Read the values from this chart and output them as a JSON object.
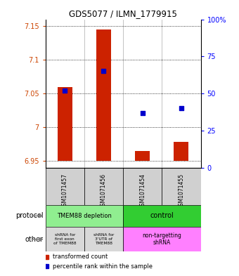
{
  "title": "GDS5077 / ILMN_1779915",
  "samples": [
    "GSM1071457",
    "GSM1071456",
    "GSM1071454",
    "GSM1071455"
  ],
  "red_values": [
    7.06,
    7.145,
    6.965,
    6.978
  ],
  "blue_percentiles": [
    52,
    65,
    37,
    40
  ],
  "ylim_left": [
    6.94,
    7.16
  ],
  "ylim_right": [
    0,
    100
  ],
  "yticks_left": [
    6.95,
    7.0,
    7.05,
    7.1,
    7.15
  ],
  "yticks_right": [
    0,
    25,
    50,
    75,
    100
  ],
  "ytick_labels_left": [
    "6.95",
    "7",
    "7.05",
    "7.1",
    "7.15"
  ],
  "ytick_labels_right": [
    "0",
    "25",
    "50",
    "75",
    "100%"
  ],
  "bar_bottom": 6.95,
  "legend_red": "transformed count",
  "legend_blue": "percentile rank within the sample",
  "red_color": "#CC2200",
  "blue_color": "#0000CC",
  "tmem88_depletion_color": "#90EE90",
  "control_color": "#32CD32",
  "other_gray_color": "#D8D8D8",
  "other_pink_color": "#FF80FF",
  "label_left_text_color": "#CC4400",
  "label_right_text_color": "#0000FF"
}
